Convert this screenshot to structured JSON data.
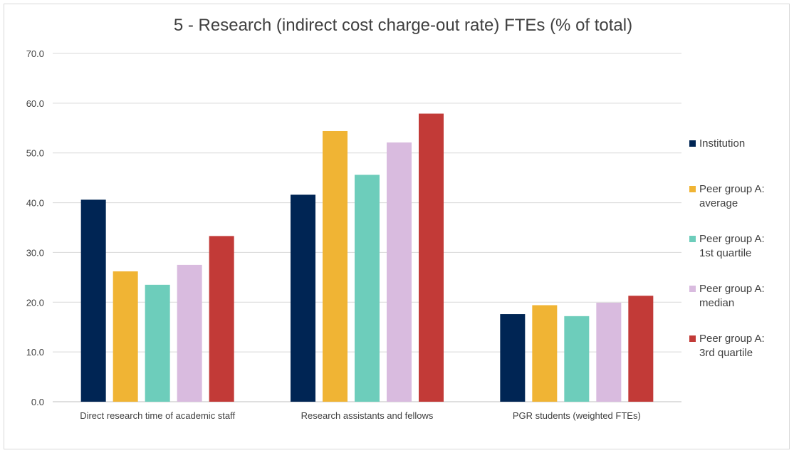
{
  "chart_data": {
    "type": "bar",
    "title": "5 - Research (indirect cost charge-out rate) FTEs (% of total)",
    "xlabel": "",
    "ylabel": "",
    "ylim": [
      0,
      70
    ],
    "yticks": [
      "0.0",
      "10.0",
      "20.0",
      "30.0",
      "40.0",
      "50.0",
      "60.0",
      "70.0"
    ],
    "grid": true,
    "legend_position": "right",
    "categories": [
      "Direct research time of academic staff",
      "Research assistants and fellows",
      "PGR students (weighted FTEs)"
    ],
    "series": [
      {
        "name": "Institution",
        "name_lines": [
          "Institution"
        ],
        "color": "#002554",
        "values": [
          40.6,
          41.6,
          17.6
        ]
      },
      {
        "name": "Peer group A: average",
        "name_lines": [
          "Peer group A:",
          "average"
        ],
        "color": "#f0b434",
        "values": [
          26.2,
          54.4,
          19.4
        ]
      },
      {
        "name": "Peer group A: 1st quartile",
        "name_lines": [
          "Peer group A:",
          "1st quartile"
        ],
        "color": "#6dcdbb",
        "values": [
          23.5,
          45.6,
          17.2
        ]
      },
      {
        "name": "Peer group A: median",
        "name_lines": [
          "Peer group A:",
          "median"
        ],
        "color": "#d9bbdf",
        "values": [
          27.5,
          52.1,
          19.9
        ]
      },
      {
        "name": "Peer group A: 3rd quartile",
        "name_lines": [
          "Peer group A:",
          "3rd quartile"
        ],
        "color": "#c23a37",
        "values": [
          33.3,
          57.9,
          21.3
        ]
      }
    ]
  }
}
